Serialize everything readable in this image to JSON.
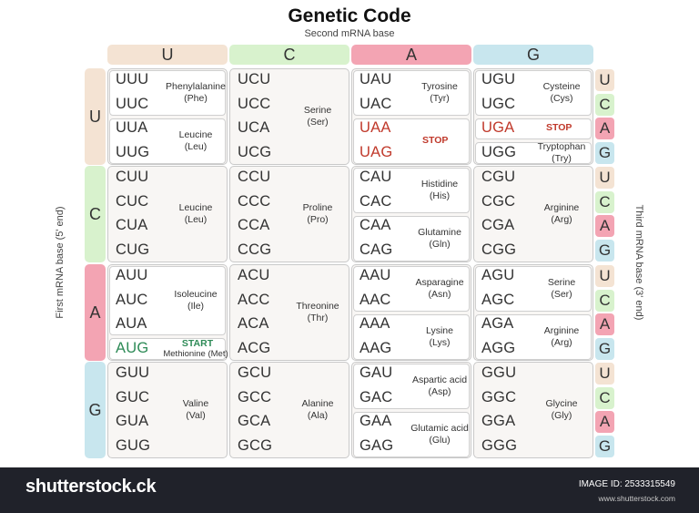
{
  "title": "Genetic Code",
  "subtitle": "Second mRNA base",
  "first_axis": "First mRNA base (5' end)",
  "third_axis": "Third mRNA base (3' end)",
  "bases": [
    "U",
    "C",
    "A",
    "G"
  ],
  "base_colors": {
    "U": "#f4e3d3",
    "C": "#d8f2cd",
    "A": "#f3a4b3",
    "G": "#c8e6ee"
  },
  "codon_colors": {
    "stop": "#c0392b",
    "start": "#2e8b57"
  },
  "cells": [
    {
      "codons": [
        "UUU",
        "UUC",
        "UUA",
        "UUG"
      ],
      "groups": [
        {
          "rows": 2,
          "name": "Phenylalanine",
          "abbr": "(Phe)"
        },
        {
          "rows": 2,
          "name": "Leucine",
          "abbr": "(Leu)"
        }
      ]
    },
    {
      "codons": [
        "UCU",
        "UCC",
        "UCA",
        "UCG"
      ],
      "groups": [
        {
          "rows": 4,
          "name": "Serine",
          "abbr": "(Ser)"
        }
      ]
    },
    {
      "codons": [
        "UAU",
        "UAC",
        "UAA",
        "UAG"
      ],
      "groups": [
        {
          "rows": 2,
          "name": "Tyrosine",
          "abbr": "(Tyr)"
        },
        {
          "rows": 2,
          "tag": "STOP",
          "tag_type": "stop"
        }
      ]
    },
    {
      "codons": [
        "UGU",
        "UGC",
        "UGA",
        "UGG"
      ],
      "groups": [
        {
          "rows": 2,
          "name": "Cysteine",
          "abbr": "(Cys)"
        },
        {
          "rows": 1,
          "tag": "STOP",
          "tag_type": "stop"
        },
        {
          "rows": 1,
          "name": "Tryptophan",
          "abbr": "(Try)"
        }
      ]
    },
    {
      "codons": [
        "CUU",
        "CUC",
        "CUA",
        "CUG"
      ],
      "groups": [
        {
          "rows": 4,
          "name": "Leucine",
          "abbr": "(Leu)"
        }
      ]
    },
    {
      "codons": [
        "CCU",
        "CCC",
        "CCA",
        "CCG"
      ],
      "groups": [
        {
          "rows": 4,
          "name": "Proline",
          "abbr": "(Pro)"
        }
      ]
    },
    {
      "codons": [
        "CAU",
        "CAC",
        "CAA",
        "CAG"
      ],
      "groups": [
        {
          "rows": 2,
          "name": "Histidine",
          "abbr": "(His)"
        },
        {
          "rows": 2,
          "name": "Glutamine",
          "abbr": "(Gln)"
        }
      ]
    },
    {
      "codons": [
        "CGU",
        "CGC",
        "CGA",
        "CGG"
      ],
      "groups": [
        {
          "rows": 4,
          "name": "Arginine",
          "abbr": "(Arg)"
        }
      ]
    },
    {
      "codons": [
        "AUU",
        "AUC",
        "AUA",
        "AUG"
      ],
      "groups": [
        {
          "rows": 3,
          "name": "Isoleucine",
          "abbr": "(Ile)"
        },
        {
          "rows": 1,
          "tag": "START",
          "tag_type": "start",
          "name": "Methionine (Met)"
        }
      ]
    },
    {
      "codons": [
        "ACU",
        "ACC",
        "ACA",
        "ACG"
      ],
      "groups": [
        {
          "rows": 4,
          "name": "Threonine",
          "abbr": "(Thr)"
        }
      ]
    },
    {
      "codons": [
        "AAU",
        "AAC",
        "AAA",
        "AAG"
      ],
      "groups": [
        {
          "rows": 2,
          "name": "Asparagine",
          "abbr": "(Asn)"
        },
        {
          "rows": 2,
          "name": "Lysine",
          "abbr": "(Lys)"
        }
      ]
    },
    {
      "codons": [
        "AGU",
        "AGC",
        "AGA",
        "AGG"
      ],
      "groups": [
        {
          "rows": 2,
          "name": "Serine",
          "abbr": "(Ser)"
        },
        {
          "rows": 2,
          "name": "Arginine",
          "abbr": "(Arg)"
        }
      ]
    },
    {
      "codons": [
        "GUU",
        "GUC",
        "GUA",
        "GUG"
      ],
      "groups": [
        {
          "rows": 4,
          "name": "Valine",
          "abbr": "(Val)"
        }
      ]
    },
    {
      "codons": [
        "GCU",
        "GCC",
        "GCA",
        "GCG"
      ],
      "groups": [
        {
          "rows": 4,
          "name": "Alanine",
          "abbr": "(Ala)"
        }
      ]
    },
    {
      "codons": [
        "GAU",
        "GAC",
        "GAA",
        "GAG"
      ],
      "groups": [
        {
          "rows": 2,
          "name": "Aspartic acid",
          "abbr": "(Asp)"
        },
        {
          "rows": 2,
          "name": "Glutamic acid",
          "abbr": "(Glu)"
        }
      ]
    },
    {
      "codons": [
        "GGU",
        "GGC",
        "GGA",
        "GGG"
      ],
      "groups": [
        {
          "rows": 4,
          "name": "Glycine",
          "abbr": "(Gly)"
        }
      ]
    }
  ],
  "special_codons": {
    "UAA": "stop",
    "UAG": "stop",
    "UGA": "stop",
    "AUG": "start"
  },
  "footer": {
    "logo": "shutterstock.ck",
    "image_id": "IMAGE ID: 2533315549",
    "site": "www.shutterstock.com"
  }
}
